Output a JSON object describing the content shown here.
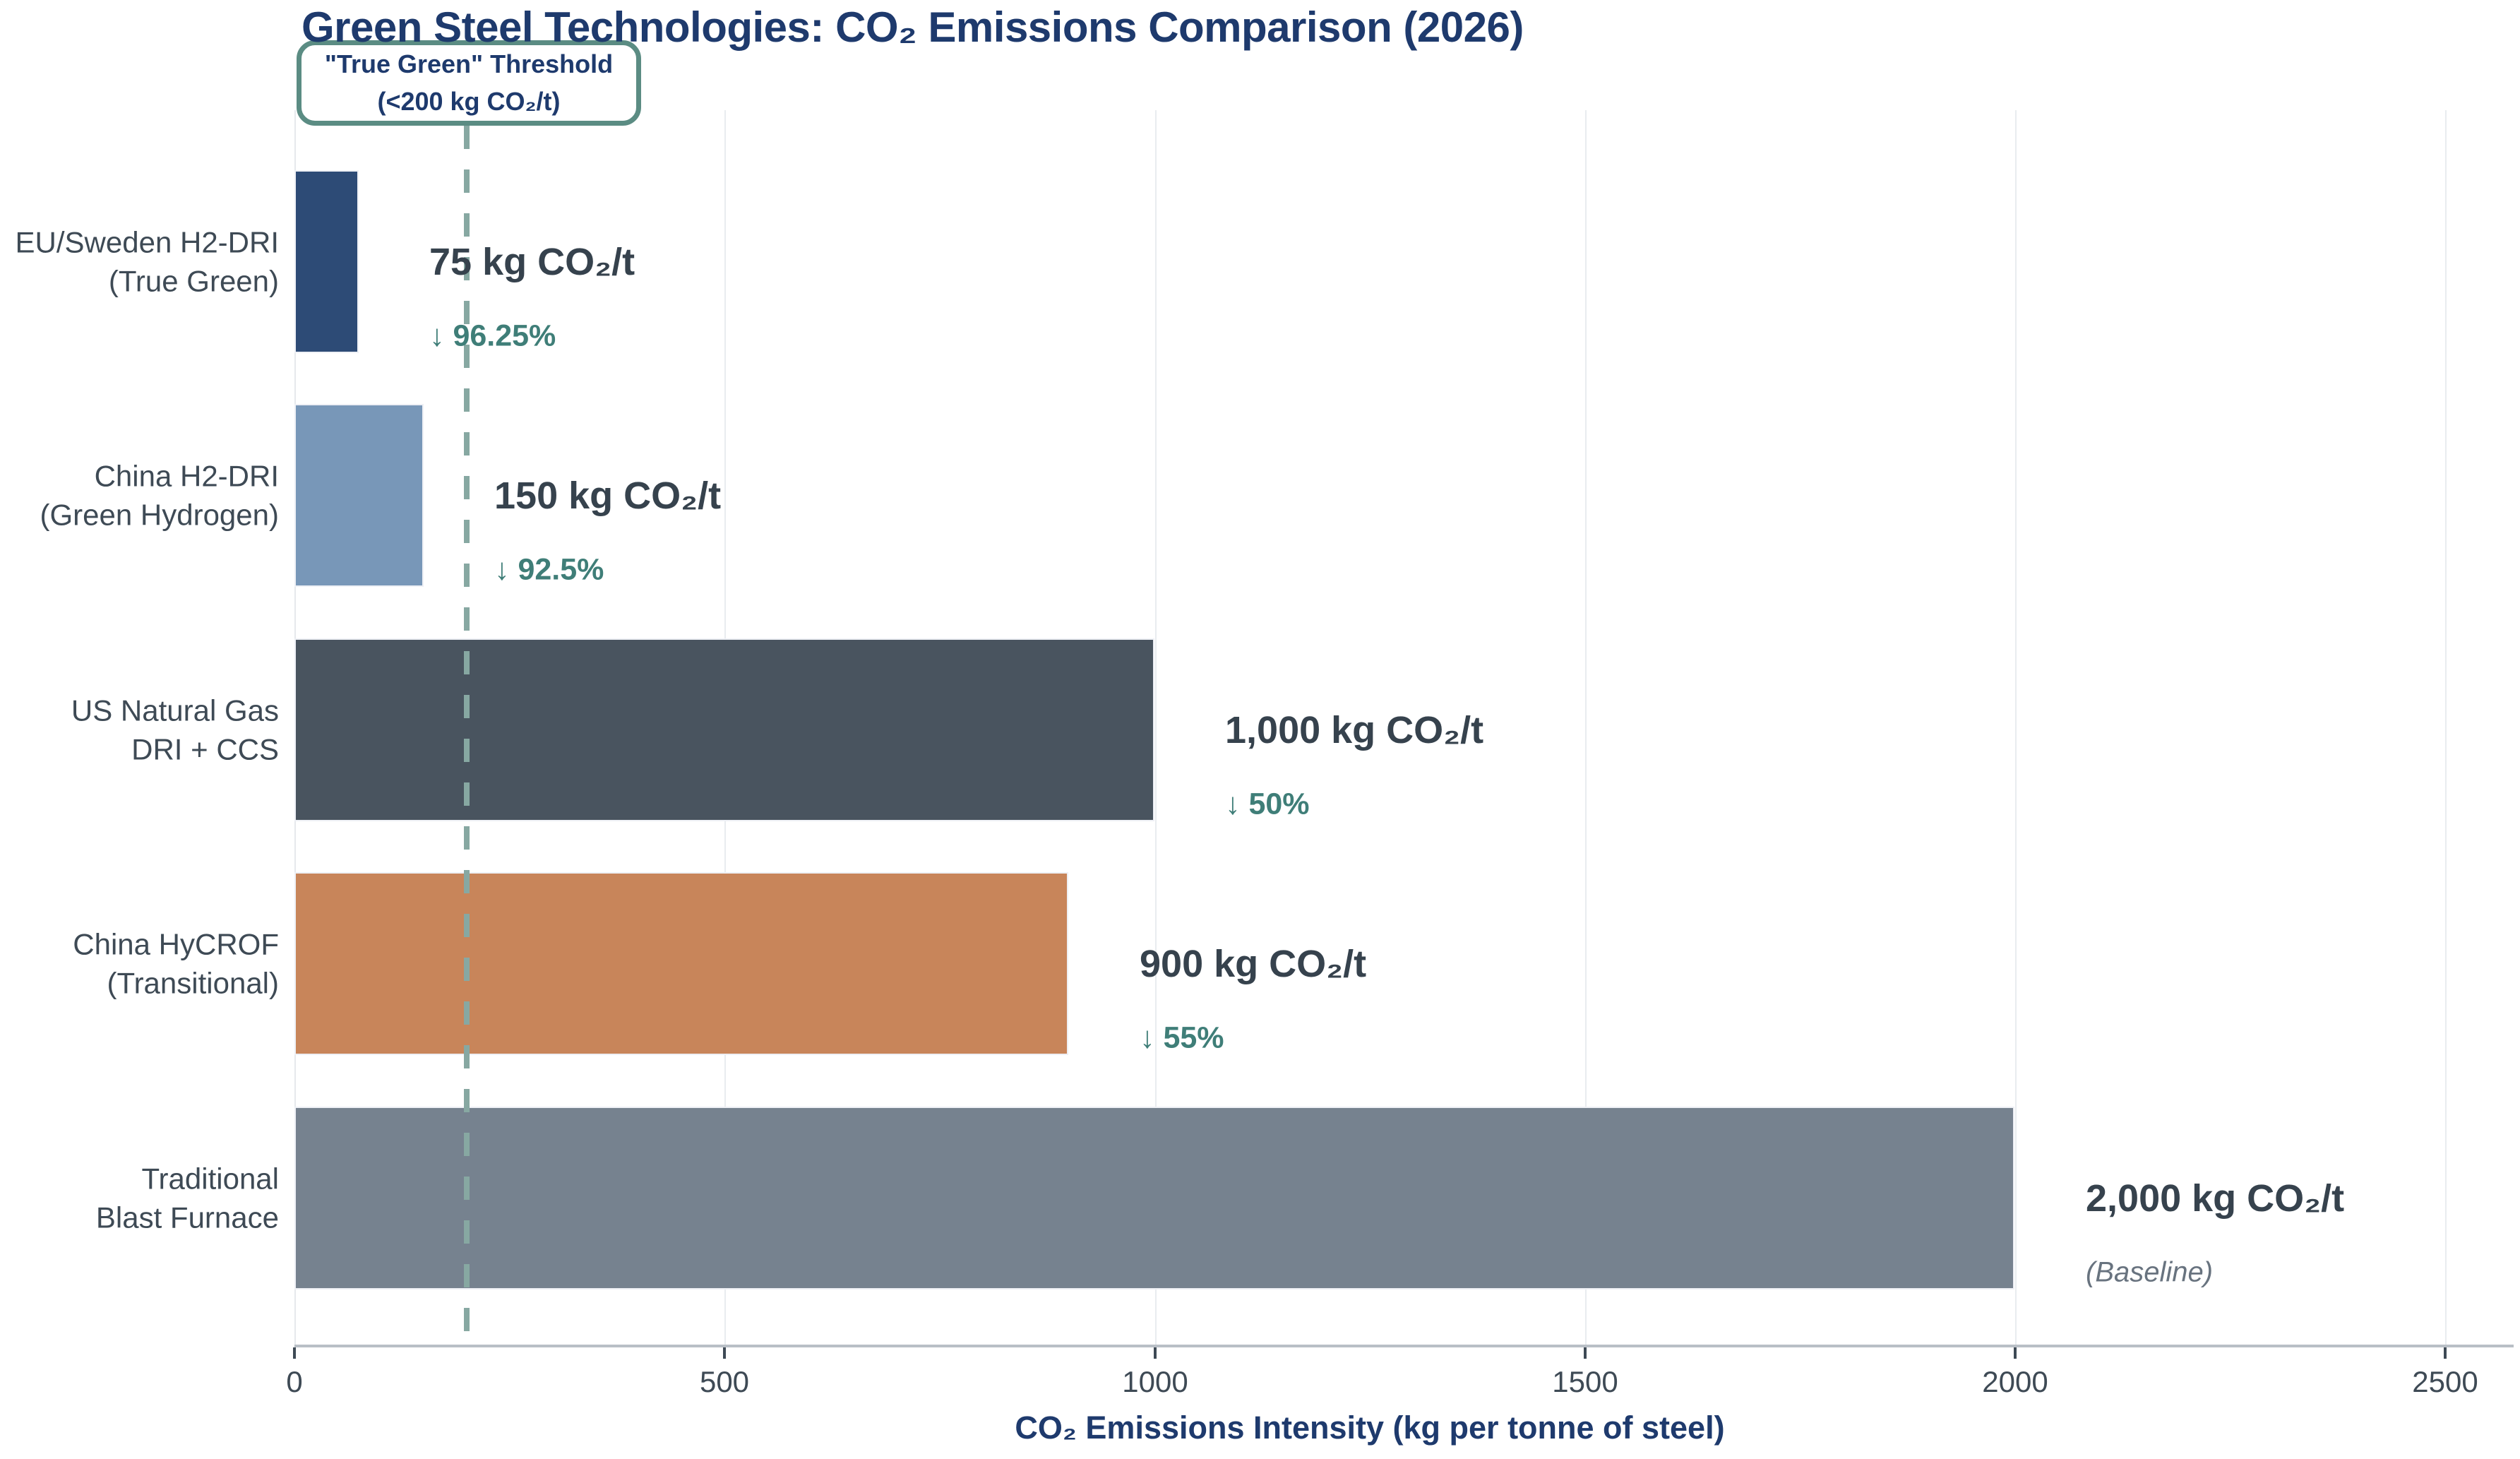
{
  "title": "Green Steel Technologies: CO₂ Emissions Comparison (2026)",
  "annotation": {
    "line1": "\"True Green\" Threshold",
    "line2": "(<200 kg CO₂/t)"
  },
  "x_axis": {
    "title": "CO₂ Emissions Intensity (kg per tonne of steel)",
    "ticks": [
      "0",
      "500",
      "1000",
      "1500",
      "2000",
      "2500"
    ]
  },
  "chart_data": {
    "type": "bar",
    "orientation": "horizontal",
    "title": "Green Steel Technologies: CO₂ Emissions Comparison (2026)",
    "xlabel": "CO₂ Emissions Intensity (kg per tonne of steel)",
    "ylabel": "",
    "xlim": [
      0,
      2580
    ],
    "xticks": [
      0,
      500,
      1000,
      1500,
      2000,
      2500
    ],
    "grid": true,
    "categories": [
      "EU/Sweden H2-DRI (True Green)",
      "China H2-DRI (Green Hydrogen)",
      "US Natural Gas DRI + CCS",
      "China HyCROF (Transitional)",
      "Traditional Blast Furnace"
    ],
    "values": [
      75,
      150,
      1000,
      900,
      2000
    ],
    "threshold": {
      "value": 200,
      "label": "\"True Green\" Threshold (<200 kg CO₂/t)",
      "line_color": "#87a8a2"
    },
    "bars": [
      {
        "label_line1": "EU/Sweden H2-DRI",
        "label_line2": "(True Green)",
        "value": 75,
        "value_label": "75 kg CO₂/t",
        "secondary_label": "↓ 96.25%",
        "secondary_type": "reduction",
        "color": "#2d4b76"
      },
      {
        "label_line1": "China H2-DRI",
        "label_line2": "(Green Hydrogen)",
        "value": 150,
        "value_label": "150 kg CO₂/t",
        "secondary_label": "↓ 92.5%",
        "secondary_type": "reduction",
        "color": "#7897b8"
      },
      {
        "label_line1": "US Natural Gas",
        "label_line2": "DRI + CCS",
        "value": 1000,
        "value_label": "1,000 kg CO₂/t",
        "secondary_label": "↓ 50%",
        "secondary_type": "reduction",
        "color": "#49545f"
      },
      {
        "label_line1": "China HyCROF",
        "label_line2": "(Transitional)",
        "value": 900,
        "value_label": "900 kg CO₂/t",
        "secondary_label": "↓ 55%",
        "secondary_type": "reduction",
        "color": "#c8855a"
      },
      {
        "label_line1": "Traditional",
        "label_line2": "Blast Furnace",
        "value": 2000,
        "value_label": "2,000 kg CO₂/t",
        "secondary_label": "(Baseline)",
        "secondary_type": "baseline",
        "color": "#76828f"
      }
    ],
    "style": {
      "title_color": "#1e3a6d",
      "axis_title_color": "#1e3a6d",
      "tick_label_color": "#3e4a55",
      "value_label_color": "#36424d",
      "reduction_color": "#3f7e78",
      "baseline_color": "#68737f",
      "gridline_color": "#e9ecef",
      "axis_line_color": "#b9bfc6",
      "annotation_border_color": "#5b8c83"
    }
  }
}
